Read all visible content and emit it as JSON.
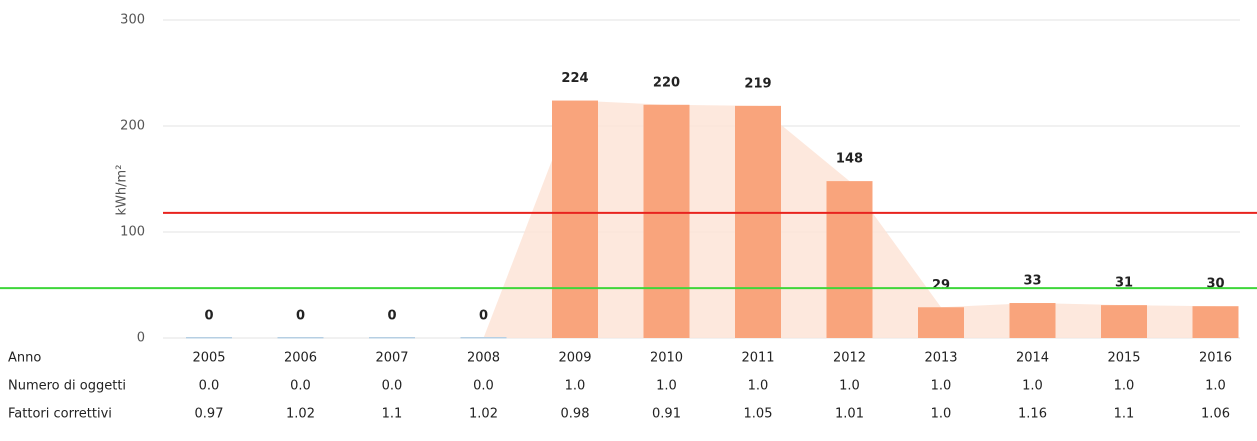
{
  "chart_data": {
    "type": "bar",
    "y_label": "kWh/m²",
    "categories": [
      "2005",
      "2006",
      "2007",
      "2008",
      "2009",
      "2010",
      "2011",
      "2012",
      "2013",
      "2014",
      "2015",
      "2016"
    ],
    "values": [
      0,
      0,
      0,
      0,
      224,
      220,
      219,
      148,
      29,
      33,
      31,
      30
    ],
    "color": "#f9a47c",
    "area_color": "#fde4d7",
    "zero_color": "#b6cfe3",
    "ylim": [
      0,
      300
    ],
    "yticks": [
      0,
      100,
      200,
      300
    ],
    "grid": true,
    "reference_lines": [
      {
        "value": 118,
        "color": "#e8231e"
      },
      {
        "value": 47,
        "color": "#3ed63a"
      }
    ],
    "table": {
      "row_labels": [
        "Anno",
        "Numero di oggetti",
        "Fattori correttivi"
      ],
      "rows": [
        [
          "0.0",
          "0.0",
          "0.0",
          "0.0",
          "1.0",
          "1.0",
          "1.0",
          "1.0",
          "1.0",
          "1.0",
          "1.0",
          "1.0"
        ],
        [
          "0.97",
          "1.02",
          "1.1",
          "1.02",
          "0.98",
          "0.91",
          "1.05",
          "1.01",
          "1.0",
          "1.16",
          "1.1",
          "1.06"
        ]
      ]
    }
  }
}
